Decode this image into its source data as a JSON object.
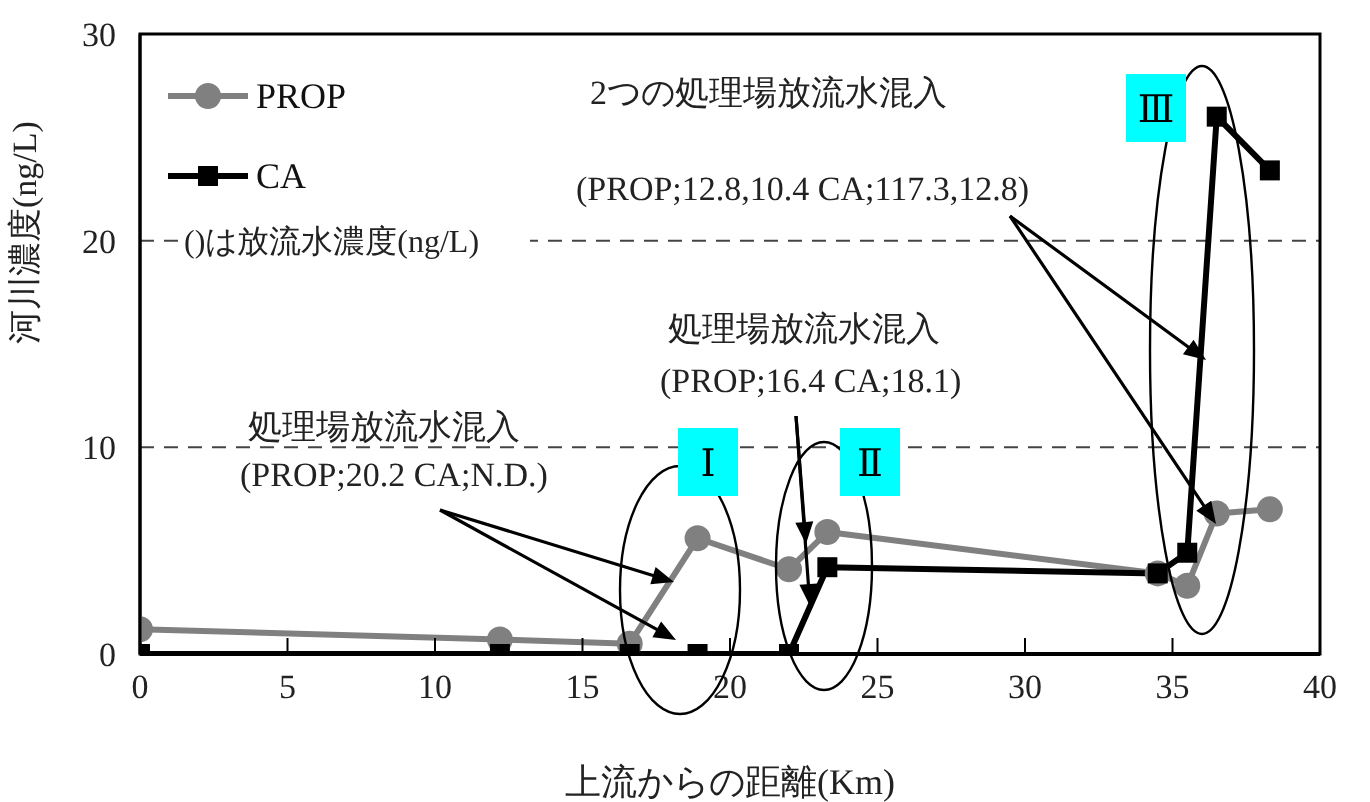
{
  "chart_data": {
    "type": "line",
    "xlabel": "上流からの距離(Km)",
    "ylabel": "河川濃度(ng/L)",
    "xlim": [
      0,
      40
    ],
    "xticks": [
      0,
      5,
      10,
      15,
      20,
      25,
      30,
      35,
      40
    ],
    "ylim": [
      0,
      30
    ],
    "yticks": [
      0,
      10,
      20,
      30
    ],
    "grid": "y",
    "legend": "top left",
    "line_style": "solid",
    "series": [
      {
        "name": "PROP",
        "color": "#808080",
        "marker": "circle",
        "x": [
          0,
          12.2,
          16.6,
          18.9,
          22.0,
          23.3,
          34.5,
          35.5,
          36.5,
          38.3
        ],
        "values": [
          1.2,
          0.7,
          0.5,
          5.6,
          4.1,
          5.9,
          3.9,
          3.3,
          6.8,
          7.0
        ]
      },
      {
        "name": "CA",
        "color": "#000000",
        "marker": "square",
        "x": [
          0,
          12.2,
          16.6,
          18.9,
          22.0,
          23.3,
          34.5,
          35.5,
          36.5,
          38.3
        ],
        "values": [
          0,
          0,
          0,
          0,
          0,
          4.2,
          3.9,
          4.9,
          26.0,
          23.4
        ]
      }
    ],
    "annotations": [
      "2つの処理場放流水混入",
      "(PROP;12.8,10.4 CA;117.3,12.8)",
      "処理場放流水混入",
      "(PROP;16.4 CA;18.1)",
      "処理場放流水混入",
      "(PROP;20.2 CA;N.D.)",
      "()は放流水濃度(ng/L)",
      "Ⅰ",
      "Ⅱ",
      "Ⅲ"
    ]
  }
}
